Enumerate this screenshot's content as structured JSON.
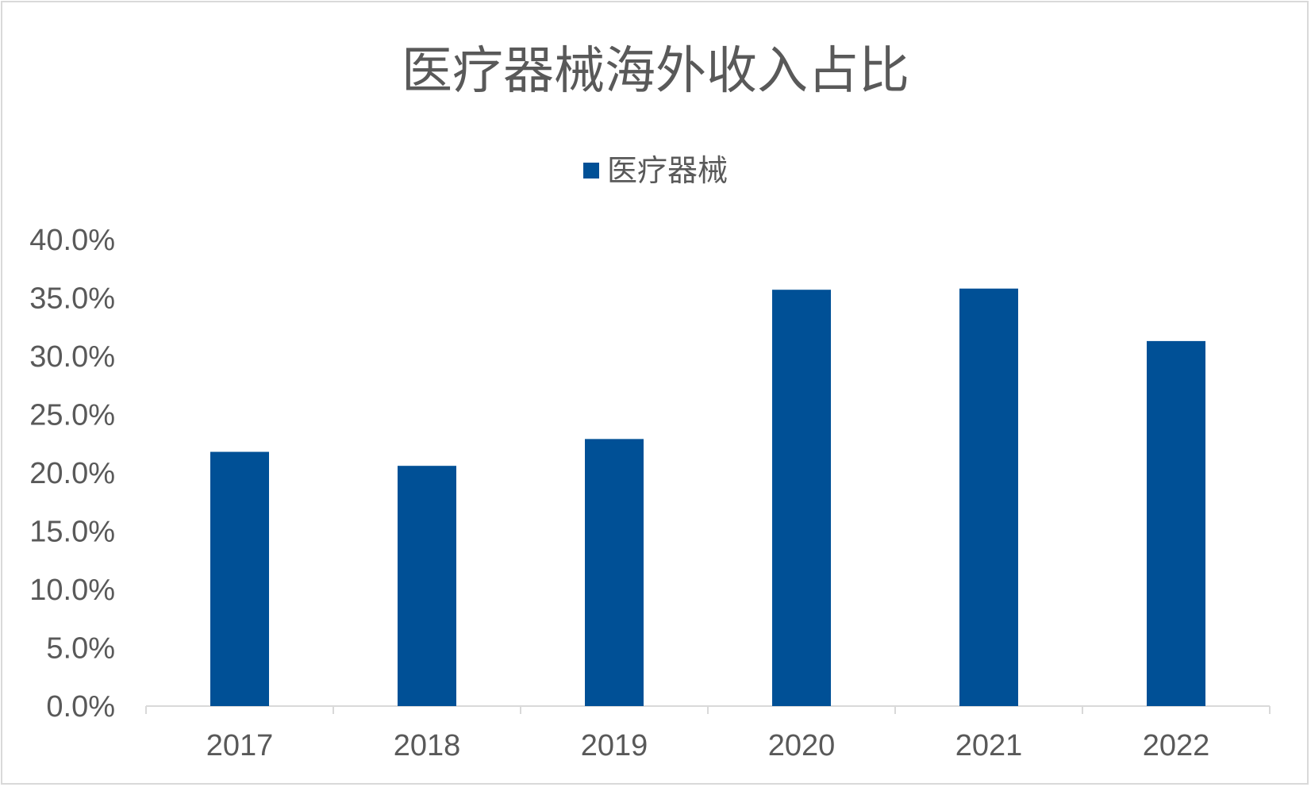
{
  "colors": {
    "bar": "#005096",
    "axis": "#d9d9d9",
    "text": "#595959"
  },
  "chart_data": {
    "type": "bar",
    "title": "医疗器械海外收入占比",
    "categories": [
      "2017",
      "2018",
      "2019",
      "2020",
      "2021",
      "2022"
    ],
    "series": [
      {
        "name": "医疗器械",
        "values": [
          21.8,
          20.6,
          22.9,
          35.7,
          35.8,
          31.3
        ]
      }
    ],
    "ylim": [
      0,
      40
    ],
    "yticks": [
      "0.0%",
      "5.0%",
      "10.0%",
      "15.0%",
      "20.0%",
      "25.0%",
      "30.0%",
      "35.0%",
      "40.0%"
    ],
    "xlabel": "",
    "ylabel": "",
    "grid": false,
    "legend_position": "top-center"
  }
}
